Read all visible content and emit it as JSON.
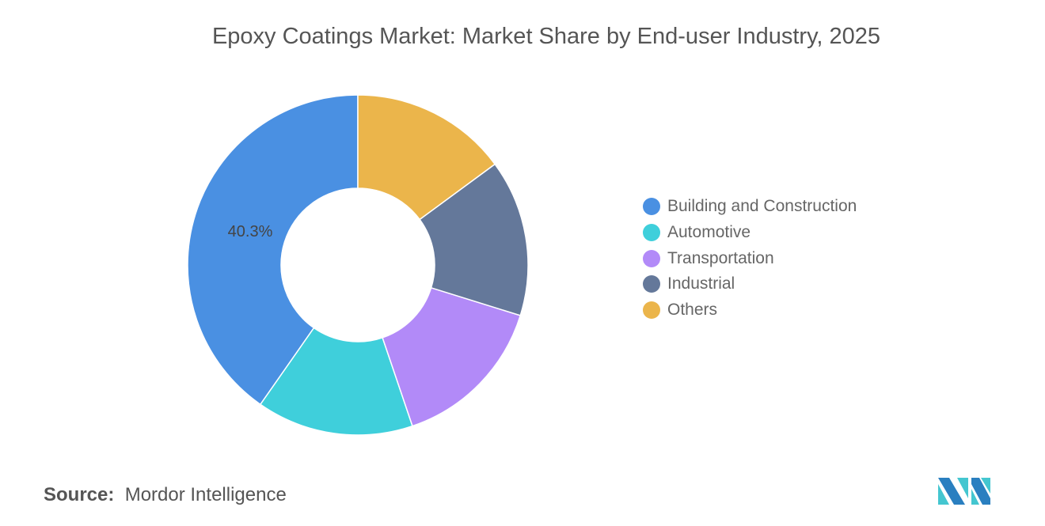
{
  "chart_data": {
    "type": "pie",
    "title": "Epoxy Coatings Market: Market Share by End-user Industry, 2025",
    "donut": true,
    "categories": [
      "Building and Construction",
      "Automotive",
      "Transportation",
      "Industrial",
      "Others"
    ],
    "values": [
      40.3,
      14.9,
      15.0,
      14.9,
      14.9
    ],
    "unit": "%",
    "data_labels": [
      {
        "category": "Building and Construction",
        "text": "40.3%"
      }
    ],
    "colors": [
      "#4a90e2",
      "#3fcfdb",
      "#b28af8",
      "#64789a",
      "#ebb54b"
    ],
    "legend_placement": "right"
  },
  "source": {
    "label": "Source:",
    "value": "Mordor Intelligence"
  },
  "logo": {
    "name": "mordor-intelligence-logo",
    "colors": [
      "#2a7fc0",
      "#44c6d0"
    ]
  }
}
